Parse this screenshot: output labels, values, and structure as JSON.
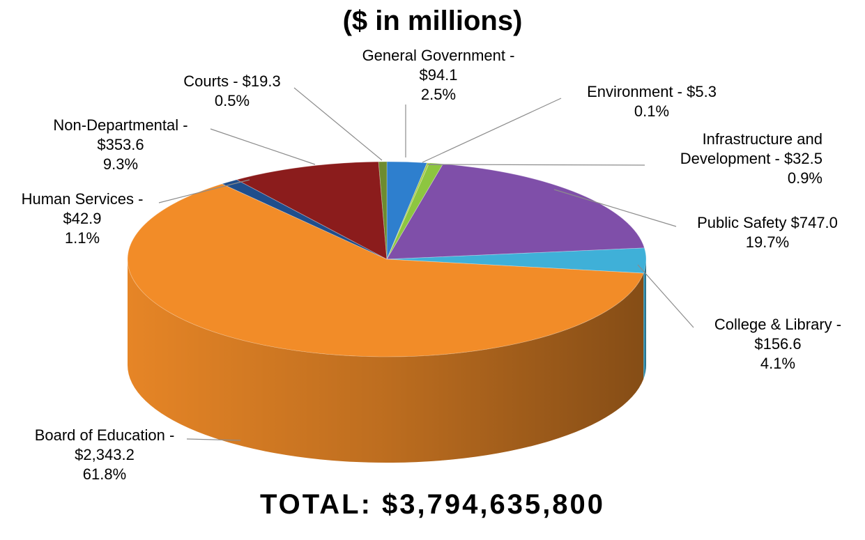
{
  "chart_data": {
    "type": "pie",
    "title": "($ in millions)",
    "total_label": "TOTAL:  $3,794,635,800",
    "slices": [
      {
        "key": "general-government",
        "label_lines": [
          "General Government -",
          "$94.1",
          "2.5%"
        ],
        "value": 94.1,
        "percent": 2.5,
        "color": "#2E7FCE"
      },
      {
        "key": "environment",
        "label_lines": [
          "Environment - $5.3",
          "0.1%"
        ],
        "value": 5.3,
        "percent": 0.1,
        "color": "#A9C94B"
      },
      {
        "key": "infrastructure-development",
        "label_lines": [
          "Infrastructure and",
          "Development - $32.5",
          "0.9%"
        ],
        "value": 32.5,
        "percent": 0.9,
        "color": "#8DC640"
      },
      {
        "key": "public-safety",
        "label_lines": [
          "Public Safety $747.0",
          "19.7%"
        ],
        "value": 747.0,
        "percent": 19.7,
        "color": "#7F4FA9"
      },
      {
        "key": "college-library",
        "label_lines": [
          "College & Library -",
          "$156.6",
          "4.1%"
        ],
        "value": 156.6,
        "percent": 4.1,
        "color": "#3FB0D8"
      },
      {
        "key": "board-of-education",
        "label_lines": [
          "Board of Education -",
          "$2,343.2",
          "61.8%"
        ],
        "value": 2343.2,
        "percent": 61.8,
        "color": "#F28C28"
      },
      {
        "key": "human-services",
        "label_lines": [
          "Human Services -",
          "$42.9",
          "1.1%"
        ],
        "value": 42.9,
        "percent": 1.1,
        "color": "#1F4E8C"
      },
      {
        "key": "non-departmental",
        "label_lines": [
          "Non-Departmental  -",
          "$353.6",
          "9.3%"
        ],
        "value": 353.6,
        "percent": 9.3,
        "color": "#8B1C1C"
      },
      {
        "key": "courts",
        "label_lines": [
          "Courts - $19.3",
          "0.5%"
        ],
        "value": 19.3,
        "percent": 0.5,
        "color": "#6E8B2F"
      }
    ]
  }
}
